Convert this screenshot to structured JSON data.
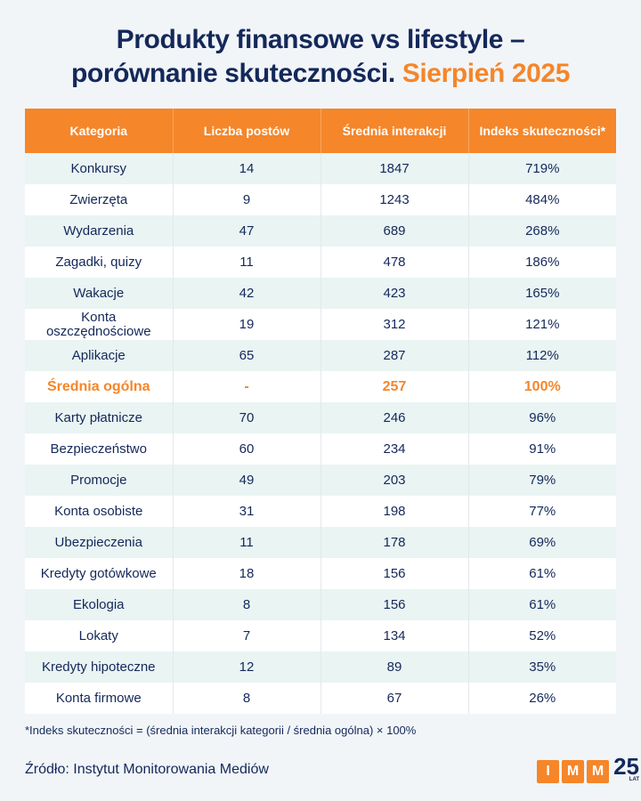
{
  "title": {
    "line1": "Produkty finansowe vs lifestyle –",
    "line2": "porównanie skuteczności.",
    "accent": "Sierpień 2025"
  },
  "colors": {
    "accent": "#f5862a",
    "navy": "#14285a",
    "row_tint": "#e9f4f3",
    "background": "#f1f5f8"
  },
  "chart_data": {
    "type": "table",
    "columns": [
      "Kategoria",
      "Liczba postów",
      "Średnia interakcji",
      "Indeks skuteczności*"
    ],
    "rows": [
      [
        "Konkursy",
        "14",
        "1847",
        "719%"
      ],
      [
        "Zwierzęta",
        "9",
        "1243",
        "484%"
      ],
      [
        "Wydarzenia",
        "47",
        "689",
        "268%"
      ],
      [
        "Zagadki, quizy",
        "11",
        "478",
        "186%"
      ],
      [
        "Wakacje",
        "42",
        "423",
        "165%"
      ],
      [
        "Konta oszczędnościowe",
        "19",
        "312",
        "121%"
      ],
      [
        "Aplikacje",
        "65",
        "287",
        "112%"
      ],
      [
        "Średnia ogólna",
        "-",
        "257",
        "100%"
      ],
      [
        "Karty płatnicze",
        "70",
        "246",
        "96%"
      ],
      [
        "Bezpieczeństwo",
        "60",
        "234",
        "91%"
      ],
      [
        "Promocje",
        "49",
        "203",
        "79%"
      ],
      [
        "Konta osobiste",
        "31",
        "198",
        "77%"
      ],
      [
        "Ubezpieczenia",
        "11",
        "178",
        "69%"
      ],
      [
        "Kredyty gotówkowe",
        "18",
        "156",
        "61%"
      ],
      [
        "Ekologia",
        "8",
        "156",
        "61%"
      ],
      [
        "Lokaty",
        "7",
        "134",
        "52%"
      ],
      [
        "Kredyty hipoteczne",
        "12",
        "89",
        "35%"
      ],
      [
        "Konta firmowe",
        "8",
        "67",
        "26%"
      ]
    ],
    "highlight_row": "Średnia ogólna"
  },
  "footnote": "*Indeks skuteczności = (średnia interakcji kategorii / średnia ogólna) × 100%",
  "source": "Źródło: Instytut Monitorowania Mediów",
  "logo": {
    "letters": [
      "I",
      "M",
      "M"
    ],
    "years": "25",
    "years_label": "LAT"
  }
}
